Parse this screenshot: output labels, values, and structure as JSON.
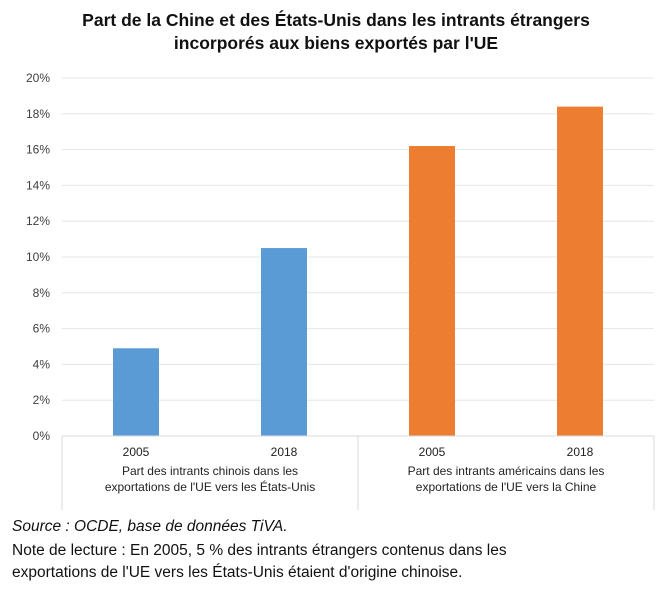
{
  "chart_data": {
    "type": "bar",
    "title_line1": "Part de la Chine et des États-Unis dans les intrants étrangers",
    "title_line2": "incorporés aux biens exportés par l'UE",
    "categories": [
      "2005",
      "2018",
      "2005",
      "2018"
    ],
    "groups": [
      "Part des intrants chinois dans les|exportations de l'UE vers les États-Unis",
      "Part des intrants américains dans les|exportations de l'UE vers la Chine"
    ],
    "values": [
      4.9,
      10.5,
      16.2,
      18.4
    ],
    "colors": [
      "#5b9bd5",
      "#5b9bd5",
      "#ed7d31",
      "#ed7d31"
    ],
    "yticks": [
      "0%",
      "2%",
      "4%",
      "6%",
      "8%",
      "10%",
      "12%",
      "14%",
      "16%",
      "18%",
      "20%"
    ],
    "ylim": [
      0,
      20
    ],
    "grid": true
  },
  "source": "Source : OCDE, base de données TiVA.",
  "note_line1": "Note de lecture : En 2005, 5 % des intrants étrangers contenus dans les",
  "note_line2": "exportations de l'UE vers les États-Unis étaient d'origine chinoise."
}
